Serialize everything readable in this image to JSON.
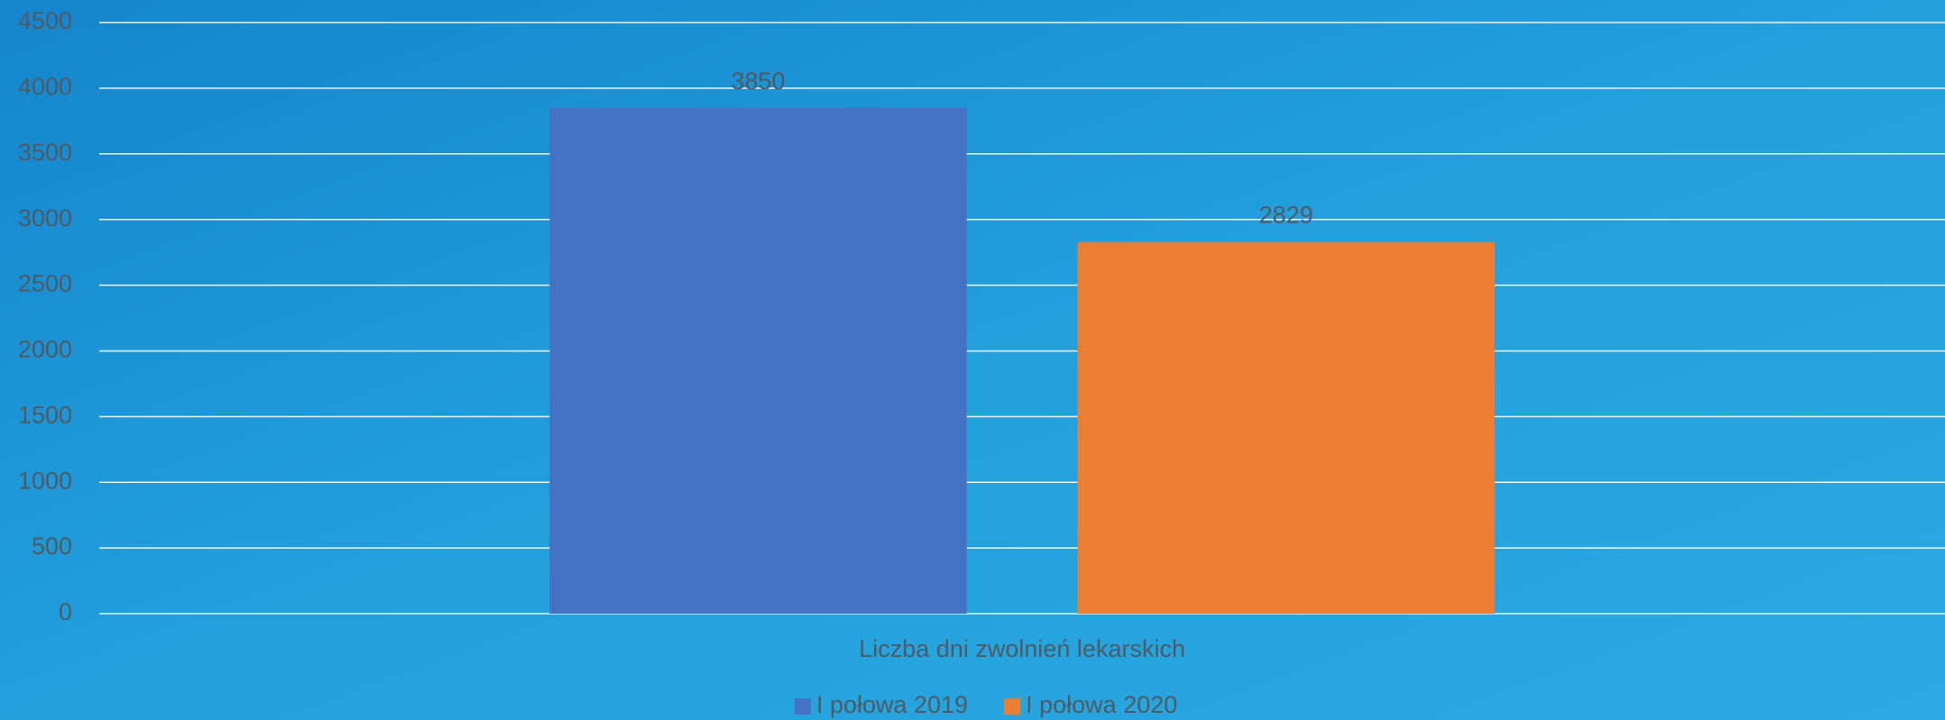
{
  "chart_data": {
    "type": "bar",
    "categories": [
      "Liczba dni zwolnień lekarskich"
    ],
    "series": [
      {
        "name": "I połowa 2019",
        "color": "#4472c4",
        "values": [
          3850
        ]
      },
      {
        "name": "I połowa 2020",
        "color": "#ed7d31",
        "values": [
          2829
        ]
      }
    ],
    "ylim": [
      0,
      4500
    ],
    "yticks": [
      0,
      500,
      1000,
      1500,
      2000,
      2500,
      3000,
      3500,
      4000,
      4500
    ],
    "grid": true,
    "legend": "bottom"
  }
}
